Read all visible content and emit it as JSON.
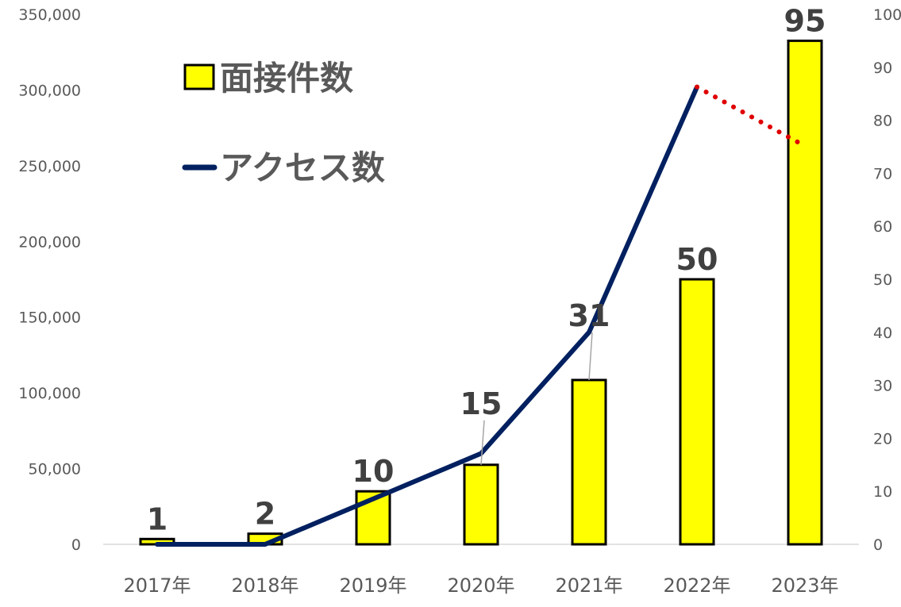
{
  "chart_data": {
    "type": "bar",
    "categories": [
      "2017年",
      "2018年",
      "2019年",
      "2020年",
      "2021年",
      "2022年",
      "2023年"
    ],
    "series": [
      {
        "name": "面接件数",
        "chart": "bar",
        "axis": "right",
        "values": [
          1,
          2,
          10,
          15,
          31,
          50,
          95
        ],
        "data_labels": [
          "1",
          "2",
          "10",
          "15",
          "31",
          "50",
          "95"
        ],
        "color": "#FFFF00",
        "border": "#000000"
      },
      {
        "name": "アクセス数",
        "chart": "line",
        "axis": "left",
        "values": [
          0,
          0,
          30000,
          60000,
          140000,
          302000,
          null
        ],
        "projected_values": [
          null,
          null,
          null,
          null,
          null,
          302000,
          263000
        ],
        "color": "#002060",
        "projection_color": "#E00000"
      }
    ],
    "y_left": {
      "min": 0,
      "max": 350000,
      "ticks": [
        "0",
        "50,000",
        "100,000",
        "150,000",
        "200,000",
        "250,000",
        "300,000",
        "350,000"
      ]
    },
    "y_right": {
      "min": 0,
      "max": 100,
      "ticks": [
        "0",
        "10",
        "20",
        "30",
        "40",
        "50",
        "60",
        "70",
        "80",
        "90",
        "100"
      ]
    },
    "legend": {
      "position": "top-left",
      "items": [
        "面接件数",
        "アクセス数"
      ]
    },
    "grid": false
  }
}
